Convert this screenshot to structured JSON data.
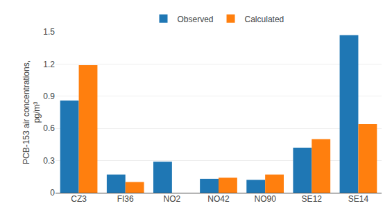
{
  "chart_data": {
    "type": "bar",
    "categories": [
      "CZ3",
      "FI36",
      "NO2",
      "NO42",
      "NO90",
      "SE12",
      "SE14"
    ],
    "series": [
      {
        "name": "Observed",
        "values": [
          0.86,
          0.17,
          0.29,
          0.13,
          0.12,
          0.42,
          1.47
        ]
      },
      {
        "name": "Calculated",
        "values": [
          1.19,
          0.1,
          0.0,
          0.14,
          0.17,
          0.5,
          0.64
        ]
      }
    ],
    "ylabel": "PCB-153 air concentrations,\npg/m³",
    "ylim": [
      0,
      1.5
    ],
    "yticks": [
      0,
      0.3,
      0.6,
      0.9,
      1.2,
      1.5
    ],
    "grid": true,
    "legend": "top"
  }
}
